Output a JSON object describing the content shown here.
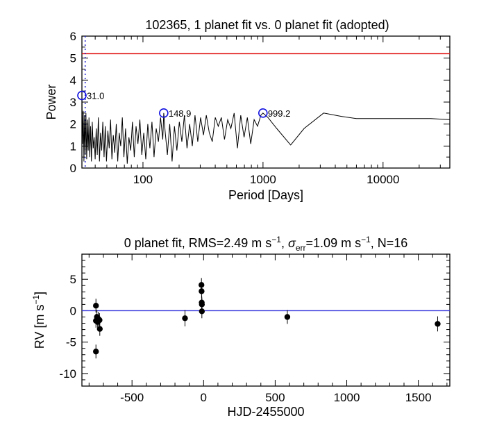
{
  "chart_data": [
    {
      "type": "line",
      "title": "102365,  1 planet fit vs. 0 planet fit (adopted)",
      "xlabel": "Period [Days]",
      "ylabel": "Power",
      "xscale": "log",
      "xlim": [
        31,
        36000
      ],
      "ylim": [
        0,
        6
      ],
      "xticks": [
        {
          "value": 100,
          "label": "100"
        },
        {
          "value": 1000,
          "label": "1000"
        },
        {
          "value": 10000,
          "label": "10000"
        }
      ],
      "yticks": [
        {
          "value": 0,
          "label": "0"
        },
        {
          "value": 1,
          "label": "1"
        },
        {
          "value": 2,
          "label": "2"
        },
        {
          "value": 3,
          "label": "3"
        },
        {
          "value": 4,
          "label": "4"
        },
        {
          "value": 5,
          "label": "5"
        },
        {
          "value": 6,
          "label": "6"
        }
      ],
      "threshold": {
        "value": 5.2,
        "color": "#e01010"
      },
      "alias_line": {
        "period": 33,
        "color": "#2020d0"
      },
      "peaks": [
        {
          "period": 31.0,
          "power": 3.3,
          "label": "31.0"
        },
        {
          "period": 148.9,
          "power": 2.5,
          "label": "148.9"
        },
        {
          "period": 999.2,
          "power": 2.5,
          "label": "999.2"
        }
      ],
      "peak_color": "#1010e0",
      "series": [
        {
          "name": "periodogram",
          "color": "#000000",
          "x": [
            31,
            31.4,
            31.8,
            32.2,
            32.6,
            33,
            33.5,
            34,
            34.5,
            35,
            35.5,
            36,
            36.6,
            37.2,
            37.8,
            38.5,
            39.2,
            40,
            40.8,
            41.6,
            42.5,
            43.4,
            44.3,
            45.3,
            46.3,
            47.4,
            48.5,
            49.7,
            51,
            52.3,
            53.7,
            55.1,
            56.6,
            58.2,
            59.9,
            61.6,
            63.4,
            65.3,
            67.3,
            69.4,
            71.6,
            74,
            76.4,
            79,
            81.7,
            84.6,
            87.6,
            90.8,
            94.2,
            97.8,
            101.5,
            105.5,
            109.7,
            114.1,
            118.8,
            123.7,
            128.9,
            134.4,
            140.2,
            146.3,
            148.9,
            152.8,
            159.7,
            167,
            174.7,
            182.9,
            191.6,
            200.9,
            210.8,
            221.4,
            232.7,
            244.7,
            257.6,
            271.4,
            286.2,
            302,
            319,
            337.2,
            356.7,
            377.7,
            400,
            424,
            450,
            478,
            508,
            540,
            575,
            612,
            652,
            695,
            740,
            790,
            843,
            900,
            960,
            999.2,
            1100,
            1300,
            1700,
            2200,
            3200,
            4500,
            6000,
            9000,
            15000,
            25000,
            36000
          ],
          "y": [
            3.3,
            1.1,
            2.6,
            0.3,
            2.4,
            0.6,
            2.5,
            0.4,
            2.2,
            0.8,
            2.3,
            0.5,
            1.9,
            0.3,
            2.1,
            0.9,
            1.4,
            0.4,
            1.8,
            0.6,
            2.3,
            0.3,
            1.6,
            0.8,
            2.1,
            0.5,
            1.9,
            0.3,
            1.7,
            0.9,
            2.2,
            0.4,
            1.5,
            0.7,
            2.0,
            0.3,
            1.6,
            1.0,
            2.3,
            0.5,
            1.8,
            0.2,
            1.4,
            0.8,
            2.1,
            0.5,
            1.9,
            1.1,
            2.2,
            0.6,
            1.6,
            0.4,
            2.0,
            0.9,
            2.1,
            0.5,
            1.8,
            1.2,
            2.3,
            1.3,
            2.5,
            1.7,
            0.6,
            2.0,
            0.3,
            1.9,
            0.8,
            2.1,
            1.2,
            2.4,
            0.9,
            2.0,
            1.0,
            2.4,
            1.2,
            2.3,
            1.5,
            2.4,
            1.6,
            1.2,
            2.3,
            1.9,
            2.3,
            1.3,
            2.2,
            1.8,
            2.5,
            0.9,
            2.4,
            1.4,
            2.3,
            1.1,
            2.2,
            1.9,
            2.4,
            2.5,
            2.3,
            1.8,
            1.05,
            1.8,
            2.5,
            2.35,
            2.25,
            2.25,
            2.25,
            2.25,
            2.2
          ]
        }
      ]
    },
    {
      "type": "scatter",
      "title_parts": {
        "before": "0 planet fit, RMS=2.49 m s",
        "sup1": "−1",
        "mid1": ", ",
        "sigma": "σ",
        "sub": "err",
        "mid2": "=1.09 m s",
        "sup2": "−1",
        "after": ", N=16"
      },
      "xlabel": "HJD-2455000",
      "ylabel_main": "RV [m s",
      "ylabel_sup": "−1",
      "ylabel_end": "]",
      "xlim": [
        -850,
        1720
      ],
      "ylim": [
        -12,
        9
      ],
      "xticks": [
        {
          "value": -500,
          "label": "-500"
        },
        {
          "value": 0,
          "label": "0"
        },
        {
          "value": 500,
          "label": "500"
        },
        {
          "value": 1000,
          "label": "1000"
        },
        {
          "value": 1500,
          "label": "1500"
        }
      ],
      "yticks": [
        {
          "value": -10,
          "label": "-10"
        },
        {
          "value": -5,
          "label": "-5"
        },
        {
          "value": 0,
          "label": "0"
        },
        {
          "value": 5,
          "label": "5"
        }
      ],
      "fit_line": {
        "value": 0,
        "color": "#3333dd"
      },
      "points": [
        {
          "x": -752,
          "y": 0.8,
          "err": 1.1
        },
        {
          "x": -752,
          "y": -1.6,
          "err": 1.1
        },
        {
          "x": -752,
          "y": -6.5,
          "err": 1.1
        },
        {
          "x": -745,
          "y": -1.0,
          "err": 1.1
        },
        {
          "x": -740,
          "y": -1.8,
          "err": 1.1
        },
        {
          "x": -735,
          "y": -1.3,
          "err": 1.1
        },
        {
          "x": -727,
          "y": -1.5,
          "err": 1.1
        },
        {
          "x": -725,
          "y": -2.9,
          "err": 1.1
        },
        {
          "x": -130,
          "y": -1.2,
          "err": 1.3
        },
        {
          "x": -15,
          "y": 4.1,
          "err": 1.1
        },
        {
          "x": -14,
          "y": 3.1,
          "err": 1.1
        },
        {
          "x": -13,
          "y": 1.3,
          "err": 1.1
        },
        {
          "x": -12,
          "y": 1.0,
          "err": 1.1
        },
        {
          "x": -12,
          "y": -0.1,
          "err": 1.1
        },
        {
          "x": 585,
          "y": -1.0,
          "err": 1.1
        },
        {
          "x": 1635,
          "y": -2.1,
          "err": 1.2
        }
      ]
    }
  ]
}
